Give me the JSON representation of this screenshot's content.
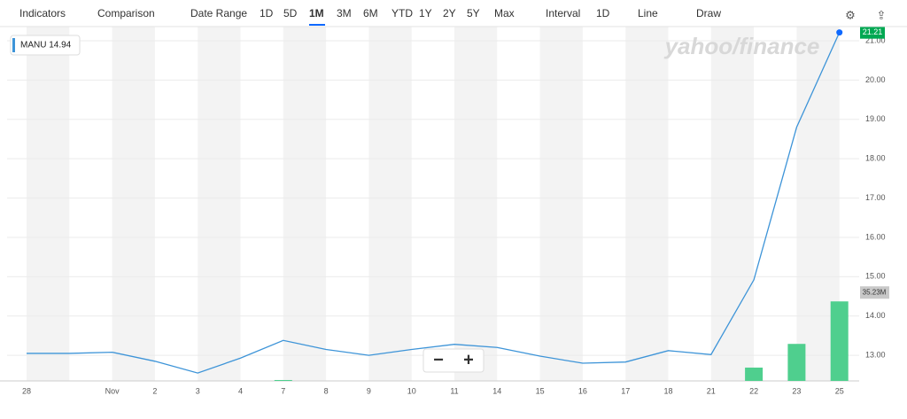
{
  "toolbar": {
    "items": [
      "Indicators",
      "Comparison",
      "Date Range",
      "1D",
      "5D",
      "1M",
      "3M",
      "6M",
      "YTD",
      "1Y",
      "2Y",
      "5Y",
      "Max",
      "Interval",
      "1D",
      "Line",
      "Draw"
    ],
    "selected": "1M"
  },
  "chart_data": {
    "type": "line",
    "legend": "MANU 14.94",
    "watermark": "yahoo/finance",
    "categories": [
      "28",
      null,
      "Nov",
      "2",
      "3",
      "4",
      "7",
      "8",
      "9",
      "10",
      "11",
      "14",
      "15",
      "16",
      "17",
      "18",
      "21",
      "22",
      "23",
      "25"
    ],
    "series": [
      {
        "name": "MANU",
        "color": "#3d94d8",
        "values": [
          13.05,
          13.05,
          13.08,
          12.85,
          12.55,
          12.93,
          13.38,
          13.15,
          13.0,
          13.15,
          13.28,
          13.2,
          12.98,
          12.8,
          12.83,
          13.12,
          13.02,
          14.92,
          18.8,
          21.21
        ]
      }
    ],
    "last_price_label": "21.21",
    "volume": {
      "color": "#4fcf8e",
      "axis": "y2",
      "values": [
        0,
        0,
        0,
        0,
        0,
        0,
        0.4,
        0,
        0,
        0,
        0,
        0,
        0,
        0,
        0,
        0,
        0,
        5.9,
        16.4,
        35.23
      ],
      "last_label": "35.23M"
    },
    "ylim": [
      12.35,
      21.36
    ],
    "yticks": [
      {
        "value": 13,
        "label": "13.00"
      },
      {
        "value": 14,
        "label": "14.00"
      },
      {
        "value": 15,
        "label": "15.00"
      },
      {
        "value": 16,
        "label": "16.00"
      },
      {
        "value": 17,
        "label": "17.00"
      },
      {
        "value": 18,
        "label": "18.00"
      },
      {
        "value": 19,
        "label": "19.00"
      },
      {
        "value": 20,
        "label": "20.00"
      },
      {
        "value": 21,
        "label": "21.00"
      }
    ],
    "y2lim": [
      0,
      157
    ],
    "grid": true
  }
}
